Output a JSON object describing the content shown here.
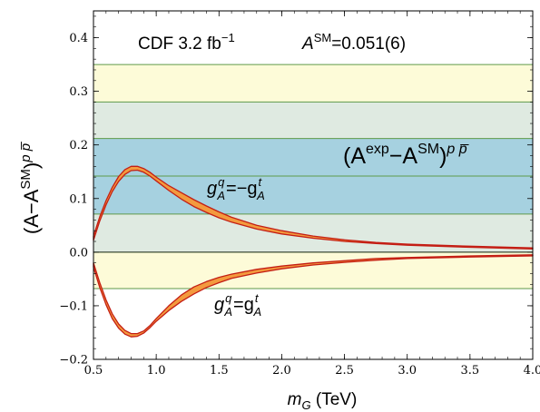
{
  "chart_data": {
    "type": "line",
    "xlabel": {
      "main": "m",
      "sub": "G",
      "unit": " (TeV)"
    },
    "ylabel": {
      "open": "(A−A",
      "sup1": "SM",
      "close": ")",
      "sup2": "p p̅"
    },
    "xlim": [
      0.5,
      4.0
    ],
    "ylim": [
      -0.2,
      0.45
    ],
    "xticks": [
      "0.5",
      "1.0",
      "1.5",
      "2.0",
      "2.5",
      "3.0",
      "3.5",
      "4.0"
    ],
    "yticks": [
      "−0.2",
      "−0.1",
      "0.0",
      "0.1",
      "0.2",
      "0.3",
      "0.4"
    ],
    "annotations": {
      "experiment": "CDF 3.2 fb",
      "experiment_sup": "−1",
      "sm_label": "A",
      "sm_sup": "SM",
      "sm_value": "=0.051(6)",
      "band_label_open": "(A",
      "band_label_sup1": "exp",
      "band_label_mid": "−A",
      "band_label_sup2": "SM",
      "band_label_close": ")",
      "band_label_sup3": "p p̅",
      "curve1_label_g": "g",
      "curve1_label_sup1": "q",
      "curve1_label_sub1": "A",
      "curve1_label_mid": "=−g",
      "curve1_label_sup2": "t",
      "curve1_label_sub2": "A",
      "curve2_label_g": "g",
      "curve2_label_sup1": "q",
      "curve2_label_sub1": "A",
      "curve2_label_mid": "=g",
      "curve2_label_sup2": "t",
      "curve2_label_sub2": "A"
    },
    "bands": [
      {
        "name": "3-sigma",
        "lower": -0.068,
        "upper": 0.35,
        "color": "#fdfbd8"
      },
      {
        "name": "2-sigma",
        "lower": 0.0,
        "upper": 0.28,
        "color": "#dfeae1"
      },
      {
        "name": "1-sigma",
        "lower": 0.071,
        "upper": 0.212,
        "color": "#a6d1e0"
      }
    ],
    "central_line": 0.142,
    "band_line_color": "#5f9a4a",
    "series": [
      {
        "x": [
          0.5,
          0.55,
          0.6,
          0.65,
          0.7,
          0.75,
          0.8,
          0.85,
          0.9,
          0.95,
          1.0,
          1.1,
          1.2,
          1.3,
          1.4,
          1.5,
          1.6,
          1.8,
          2.0,
          2.25,
          2.5,
          2.75,
          3.0,
          3.5,
          4.0
        ],
        "lower": [
          0.022,
          0.058,
          0.088,
          0.113,
          0.132,
          0.145,
          0.152,
          0.153,
          0.149,
          0.142,
          0.133,
          0.115,
          0.099,
          0.085,
          0.074,
          0.064,
          0.056,
          0.043,
          0.034,
          0.026,
          0.02,
          0.016,
          0.013,
          0.009,
          0.006
        ],
        "upper": [
          0.03,
          0.066,
          0.096,
          0.121,
          0.141,
          0.154,
          0.16,
          0.16,
          0.156,
          0.149,
          0.14,
          0.124,
          0.111,
          0.098,
          0.086,
          0.075,
          0.065,
          0.05,
          0.04,
          0.03,
          0.023,
          0.018,
          0.015,
          0.011,
          0.008
        ]
      },
      {
        "x": [
          0.5,
          0.55,
          0.6,
          0.65,
          0.7,
          0.75,
          0.8,
          0.85,
          0.9,
          0.95,
          1.0,
          1.1,
          1.2,
          1.3,
          1.4,
          1.5,
          1.6,
          1.8,
          2.0,
          2.25,
          2.5,
          2.75,
          3.0,
          3.5,
          4.0
        ],
        "lower": [
          -0.028,
          -0.066,
          -0.098,
          -0.124,
          -0.142,
          -0.153,
          -0.158,
          -0.157,
          -0.151,
          -0.141,
          -0.129,
          -0.109,
          -0.092,
          -0.078,
          -0.066,
          -0.057,
          -0.049,
          -0.039,
          -0.031,
          -0.024,
          -0.019,
          -0.015,
          -0.012,
          -0.009,
          -0.007
        ],
        "upper": [
          -0.02,
          -0.057,
          -0.089,
          -0.115,
          -0.134,
          -0.146,
          -0.152,
          -0.152,
          -0.147,
          -0.137,
          -0.124,
          -0.1,
          -0.08,
          -0.065,
          -0.055,
          -0.047,
          -0.041,
          -0.032,
          -0.026,
          -0.02,
          -0.016,
          -0.012,
          -0.01,
          -0.007,
          -0.005
        ]
      }
    ],
    "curve_fill": "#f39a3e",
    "curve_edge": "#c41e14",
    "grid": false
  }
}
